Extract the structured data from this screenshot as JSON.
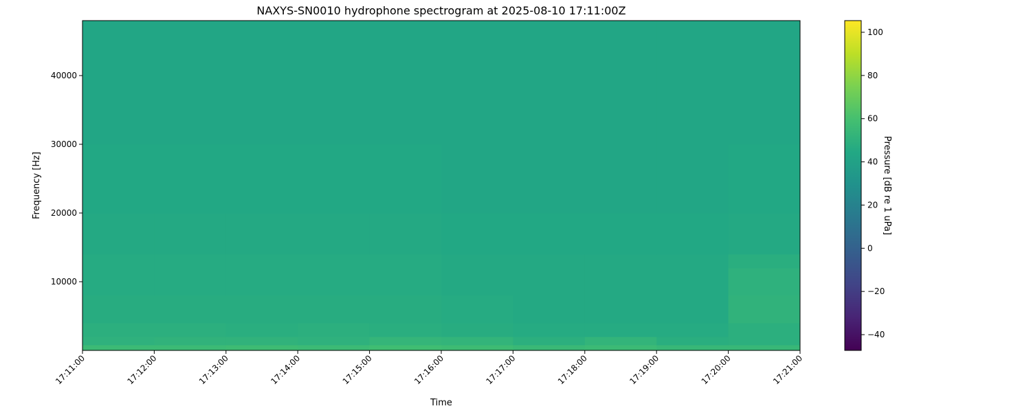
{
  "chart_data": {
    "type": "heatmap",
    "title": "NAXYS-SN0010 hydrophone spectrogram at 2025-08-10 17:11:00Z",
    "xlabel": "Time",
    "ylabel": "Frequency [Hz]",
    "colorbar_label": "Pressure [dB re 1 uPa]",
    "colormap": "viridis",
    "clim": [
      -47.3,
      105.4
    ],
    "colorbar_ticks": [
      -40,
      -20,
      0,
      20,
      40,
      60,
      80,
      100
    ],
    "ylim": [
      0,
      48000
    ],
    "yticks": [
      10000,
      20000,
      30000,
      40000
    ],
    "xticks": [
      "17:11:00",
      "17:12:00",
      "17:13:00",
      "17:14:00",
      "17:15:00",
      "17:16:00",
      "17:17:00",
      "17:18:00",
      "17:19:00",
      "17:20:00",
      "17:21:00"
    ],
    "time_edges": [
      "17:11:00",
      "17:12:00",
      "17:13:00",
      "17:14:00",
      "17:15:00",
      "17:16:00",
      "17:17:00",
      "17:18:00",
      "17:19:00",
      "17:20:00",
      "17:21:00"
    ],
    "freq_edges": [
      0,
      800,
      2000,
      4000,
      8000,
      12000,
      14000,
      20000,
      30000,
      40000,
      48000
    ],
    "values_db": [
      [
        56,
        56,
        57,
        56,
        58,
        57,
        55,
        56,
        54,
        54
      ],
      [
        50,
        51,
        51,
        50,
        53,
        52,
        49,
        52,
        48,
        49
      ],
      [
        49,
        49,
        48,
        49,
        48,
        47,
        46,
        46,
        46,
        49
      ],
      [
        47,
        47,
        47,
        47,
        47,
        46,
        45,
        45,
        45,
        51
      ],
      [
        46,
        46,
        46,
        46,
        46,
        45,
        45,
        45,
        45,
        50
      ],
      [
        46,
        46,
        46,
        46,
        46,
        45,
        45,
        45,
        45,
        48
      ],
      [
        45,
        45,
        45,
        45,
        45,
        44,
        44,
        44,
        44,
        45
      ],
      [
        44,
        44,
        44,
        44,
        44,
        43,
        43,
        43,
        43,
        44
      ],
      [
        43,
        43,
        43,
        43,
        43,
        43,
        43,
        43,
        43,
        43
      ],
      [
        43,
        43,
        43,
        43,
        43,
        43,
        43,
        43,
        43,
        43
      ]
    ]
  }
}
